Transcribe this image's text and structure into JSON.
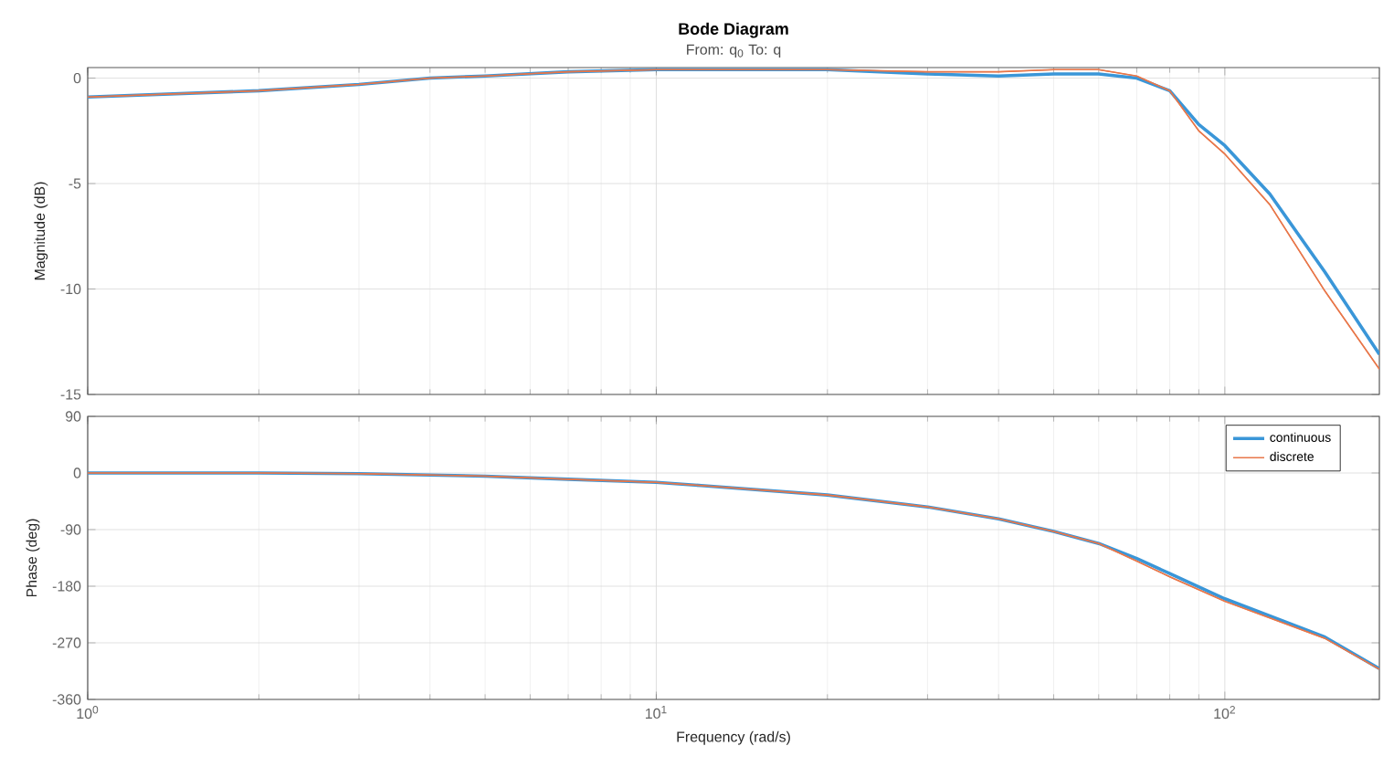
{
  "chart_data": [
    {
      "type": "line",
      "title": "Bode Diagram",
      "subtitle": "From: q$_{0}$  To: q",
      "ylabel": "Magnitude (dB)",
      "log": "x",
      "grid": true,
      "tick_labels": "y",
      "xlim": [
        1,
        187
      ],
      "xticks": [
        {
          "value": 1,
          "label": null
        },
        {
          "value": 10,
          "label": null
        },
        {
          "value": 100,
          "label": null
        }
      ],
      "ylim": [
        -15,
        0.5
      ],
      "yticks": [
        -15,
        -10,
        -5,
        0
      ],
      "series": [
        {
          "color": "#3a96d8",
          "x": [
            1,
            2,
            3,
            4,
            5,
            7,
            10,
            20,
            30,
            40,
            50,
            60,
            70,
            80,
            90,
            100,
            120,
            150,
            187
          ],
          "values": [
            -0.9,
            -0.6,
            -0.3,
            0,
            0.1,
            0.3,
            0.4,
            0.4,
            0.2,
            0.1,
            0.2,
            0.2,
            0,
            -0.6,
            -2.2,
            -3.2,
            -5.5,
            -9.2,
            -13.1
          ]
        },
        {
          "color": "#e8774a",
          "x": [
            1,
            2,
            3,
            4,
            5,
            7,
            10,
            20,
            30,
            40,
            50,
            60,
            70,
            80,
            90,
            100,
            120,
            150,
            187
          ],
          "values": [
            -0.9,
            -0.6,
            -0.3,
            0,
            0.1,
            0.3,
            0.4,
            0.4,
            0.3,
            0.3,
            0.4,
            0.4,
            0.1,
            -0.6,
            -2.5,
            -3.6,
            -6.0,
            -10.1,
            -13.8
          ]
        }
      ]
    },
    {
      "type": "line",
      "xlabel": "Frequency  (rad/s)",
      "ylabel": "Phase (deg)",
      "log": "x",
      "grid": true,
      "legend": "top right",
      "xlim": [
        1,
        187
      ],
      "xticks": [
        {
          "value": 1,
          "label": "10$^{0}$"
        },
        {
          "value": 10,
          "label": "10$^{1}$"
        },
        {
          "value": 100,
          "label": "10$^{2}$"
        }
      ],
      "ylim": [
        -360,
        90
      ],
      "yticks": [
        -360,
        -270,
        -180,
        -90,
        0,
        90
      ],
      "series": [
        {
          "name": "continuous",
          "color": "#3a96d8",
          "x": [
            1,
            2,
            3,
            5,
            7,
            10,
            12,
            20,
            30,
            40,
            50,
            60,
            70,
            80,
            100,
            150,
            187
          ],
          "values": [
            0,
            0,
            -1,
            -5,
            -10,
            -15,
            -20,
            -35,
            -54,
            -73,
            -93,
            -112,
            -136,
            -160,
            -200,
            -261,
            -311
          ]
        },
        {
          "name": "discrete",
          "color": "#e8774a",
          "x": [
            1,
            2,
            3,
            5,
            7,
            10,
            12,
            20,
            30,
            40,
            50,
            60,
            70,
            80,
            100,
            150,
            187
          ],
          "values": [
            0,
            0,
            -1,
            -5,
            -10,
            -15,
            -20,
            -35,
            -54,
            -73,
            -93,
            -112,
            -140,
            -165,
            -204,
            -263,
            -312
          ]
        }
      ]
    }
  ]
}
